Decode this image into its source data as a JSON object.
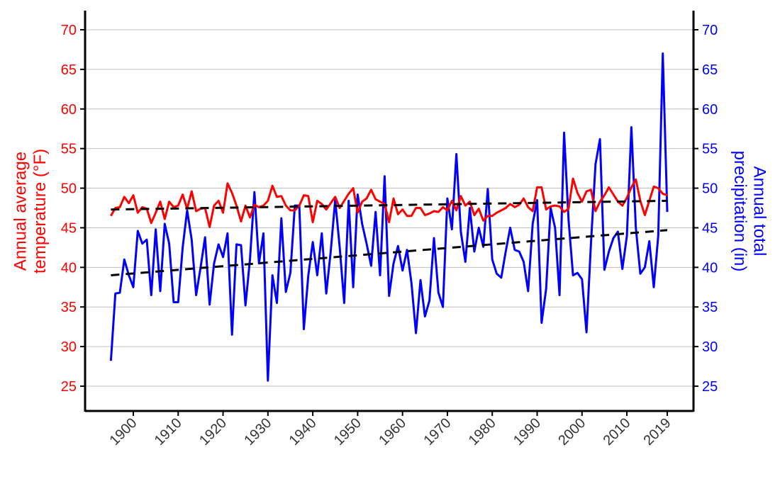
{
  "chart_data": {
    "type": "line",
    "title": "",
    "xlabel": "",
    "ylabel_left": "Annual average temperature (°F)",
    "ylabel_right": "Annual total precipitation (in)",
    "ylim": [
      22,
      72
    ],
    "xlim": [
      1891.5,
      2022.5
    ],
    "grid": "horizontal",
    "x_ticks": [
      1900,
      1910,
      1920,
      1930,
      1940,
      1950,
      1960,
      1970,
      1980,
      1990,
      2000,
      2010,
      2019
    ],
    "y_ticks": [
      25,
      30,
      35,
      40,
      45,
      50,
      55,
      60,
      65,
      70
    ],
    "x_start": 1895,
    "colors": {
      "temperature": "#ff0000",
      "precipitation": "#0000ff",
      "trend": "#000000",
      "grid": "#c0c0c0"
    },
    "series": [
      {
        "key": "temperature",
        "axis": "left",
        "style": "solid",
        "values": [
          46.5,
          47.5,
          47.6,
          48.9,
          48.1,
          49.1,
          46.9,
          47.6,
          47.4,
          45.6,
          46.9,
          48.3,
          46.1,
          48.3,
          47.6,
          47.8,
          49.2,
          47.4,
          49.6,
          47.1,
          47.4,
          47.5,
          45.1,
          47.8,
          48.4,
          46.9,
          50.6,
          49.4,
          47.8,
          45.8,
          47.8,
          46.3,
          47.9,
          47.6,
          47.8,
          48.4,
          50.3,
          48.9,
          49.0,
          47.8,
          47.2,
          47.2,
          47.8,
          49.1,
          49.0,
          45.7,
          48.4,
          48.0,
          47.3,
          48.1,
          48.9,
          47.5,
          48.4,
          49.3,
          50.0,
          46.9,
          48.3,
          48.7,
          49.8,
          48.6,
          48.3,
          48.0,
          45.7,
          48.7,
          46.7,
          47.3,
          46.5,
          46.5,
          47.5,
          47.5,
          46.6,
          46.8,
          47.1,
          47.0,
          47.6,
          47.2,
          48.4,
          47.2,
          49.0,
          47.8,
          48.3,
          46.6,
          47.4,
          45.9,
          46.5,
          46.5,
          46.9,
          47.2,
          47.5,
          48.0,
          47.6,
          47.9,
          48.7,
          47.6,
          47.1,
          50.1,
          50.1,
          47.3,
          47.7,
          47.8,
          47.7,
          47.0,
          47.4,
          51.2,
          49.4,
          48.3,
          49.6,
          49.8,
          47.1,
          48.3,
          49.1,
          50.1,
          49.2,
          48.3,
          47.8,
          48.8,
          50.1,
          51.1,
          48.4,
          46.6,
          48.4,
          50.2,
          50.0,
          49.3,
          49.1
        ]
      },
      {
        "key": "precipitation",
        "axis": "right",
        "style": "solid",
        "values": [
          28.2,
          36.7,
          36.8,
          41.0,
          39.0,
          37.5,
          44.6,
          43.0,
          43.5,
          36.5,
          44.8,
          37.0,
          45.5,
          43.0,
          35.6,
          35.6,
          42.5,
          47.2,
          43.5,
          36.5,
          40.0,
          43.8,
          35.3,
          40.5,
          42.9,
          41.3,
          44.3,
          31.5,
          42.9,
          42.8,
          35.2,
          41.0,
          49.5,
          40.5,
          44.3,
          25.7,
          39.0,
          35.5,
          46.2,
          36.9,
          39.3,
          47.8,
          47.8,
          32.2,
          39.0,
          43.2,
          39.0,
          44.3,
          36.7,
          42.0,
          48.5,
          42.5,
          35.5,
          48.4,
          37.5,
          49.2,
          45.5,
          43.0,
          40.2,
          47.0,
          39.0,
          51.5,
          36.4,
          40.5,
          42.7,
          39.6,
          42.2,
          38.0,
          31.7,
          38.4,
          33.8,
          35.8,
          43.7,
          36.8,
          35.0,
          48.7,
          44.8,
          54.3,
          44.5,
          40.7,
          47.5,
          42.0,
          45.0,
          42.6,
          49.9,
          41.0,
          39.2,
          38.7,
          42.0,
          45.0,
          42.2,
          42.0,
          40.7,
          37.0,
          45.5,
          48.5,
          33.0,
          37.3,
          47.5,
          45.0,
          36.5,
          57.0,
          46.0,
          39.0,
          39.3,
          38.5,
          31.8,
          43.0,
          53.0,
          56.2,
          39.7,
          42.0,
          43.7,
          44.5,
          39.8,
          44.0,
          57.7,
          45.0,
          39.2,
          40.0,
          43.3,
          37.5,
          44.0,
          67.0,
          47.0
        ]
      },
      {
        "key": "temperature-trend",
        "axis": "left",
        "style": "dashed",
        "x": [
          1895,
          2019
        ],
        "values": [
          47.3,
          48.4
        ]
      },
      {
        "key": "precipitation-trend",
        "axis": "right",
        "style": "dashed",
        "x": [
          1895,
          2019
        ],
        "values": [
          39.0,
          44.7
        ]
      }
    ]
  }
}
